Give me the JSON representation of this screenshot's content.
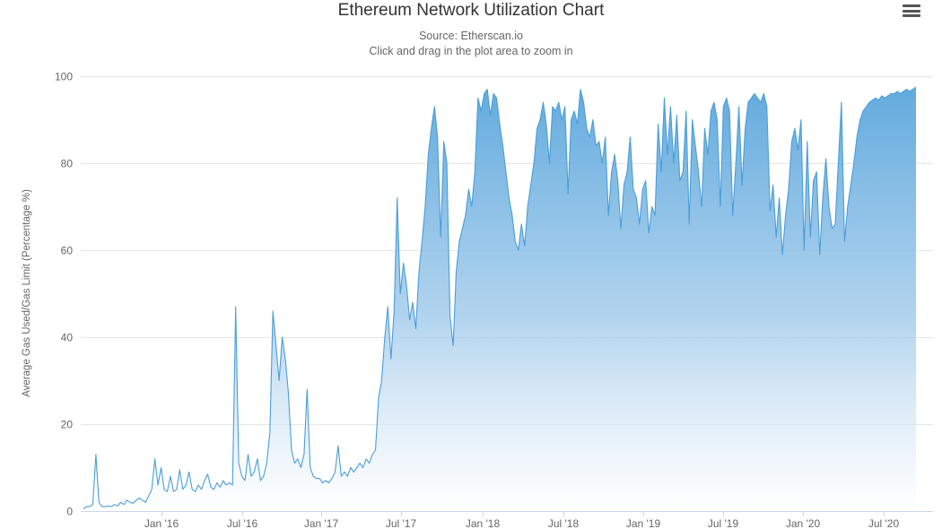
{
  "chart_data": {
    "type": "area",
    "title": "Ethereum Network Utilization Chart",
    "subtitle1": "Source: Etherscan.io",
    "subtitle2": "Click and drag in the plot area to zoom in",
    "ylabel": "Average Gas Used/Gas Limit (Percentage %)",
    "ylim": [
      0,
      100
    ],
    "y_ticks": [
      0,
      20,
      40,
      60,
      80,
      100
    ],
    "x_ticks": [
      "Jan '16",
      "Jul '16",
      "Jan '17",
      "Jul '17",
      "Jan '18",
      "Jul '18",
      "Jan '19",
      "Jul '19",
      "Jan '20",
      "Jul '20"
    ],
    "x_start": "Aug 2015",
    "x_end": "Sep 2020",
    "sampling": "approx. weekly values estimated from plot",
    "grid": true,
    "legend": "none",
    "values": [
      0.5,
      1,
      1,
      1.5,
      13,
      2,
      1,
      1,
      1.2,
      1,
      1.5,
      1.2,
      2,
      1.5,
      2.5,
      2,
      1.8,
      2.5,
      3,
      2.5,
      2,
      3.5,
      5,
      12,
      6,
      10,
      5,
      4.5,
      8,
      4.5,
      5,
      9.5,
      5,
      6,
      9,
      5,
      4.5,
      6,
      5,
      7,
      8.5,
      5.5,
      5,
      6.5,
      5.5,
      7,
      6,
      6.5,
      6,
      47,
      11,
      8,
      7,
      13,
      8,
      9,
      12,
      7,
      8,
      11,
      18,
      46,
      38,
      30,
      40,
      35,
      27,
      14,
      11,
      12,
      10,
      13,
      28,
      10,
      8,
      7.5,
      7.5,
      6.5,
      7,
      6.5,
      7.5,
      9,
      15,
      8,
      9,
      8,
      10,
      9,
      10,
      11,
      10,
      12,
      11,
      13,
      14,
      26,
      30,
      40,
      47,
      35,
      46,
      72,
      50,
      57,
      52,
      44,
      48,
      42,
      55,
      62,
      70,
      82,
      88,
      93,
      86,
      63,
      85,
      80,
      45,
      38,
      55,
      62,
      65,
      68,
      74,
      70,
      78,
      95,
      92,
      96,
      97,
      91,
      96,
      95,
      89,
      84,
      78,
      72,
      68,
      62,
      60,
      66,
      61,
      70,
      75,
      80,
      88,
      90,
      94,
      89,
      80,
      93,
      92,
      94,
      90,
      93,
      73,
      90,
      92,
      89,
      97,
      94,
      88,
      86,
      90,
      84,
      85,
      80,
      86,
      68,
      78,
      82,
      76,
      65,
      75,
      78,
      86,
      74,
      72,
      66,
      74,
      76,
      64,
      70,
      68,
      89,
      78,
      95,
      82,
      93,
      80,
      91,
      76,
      78,
      92,
      66,
      90,
      84,
      78,
      70,
      88,
      82,
      92,
      94,
      90,
      70,
      93,
      95,
      92,
      68,
      80,
      93,
      75,
      88,
      94,
      95,
      96,
      95,
      94,
      96,
      93,
      69,
      75,
      63,
      72,
      59,
      68,
      74,
      85,
      88,
      83,
      90,
      60,
      85,
      63,
      76,
      78,
      59,
      72,
      81,
      70,
      65,
      66,
      80,
      94,
      62,
      70,
      75,
      80,
      86,
      90,
      92,
      93,
      94,
      94.5,
      95,
      94.5,
      95.5,
      95,
      95.5,
      96,
      96,
      96.5,
      96,
      96.5,
      97,
      96.5,
      97,
      97.5
    ],
    "colors": {
      "line": "#4C9ED8",
      "area_top": "#55A4DB",
      "area_mid": "#9DC8EA",
      "area_bottom": "#FFFFFF",
      "grid": "#E6E6E6",
      "axis_line": "#CCD6EB",
      "label_text": "#666666",
      "title_text": "#333333"
    }
  },
  "menu": {
    "icon": "hamburger-menu-icon"
  }
}
